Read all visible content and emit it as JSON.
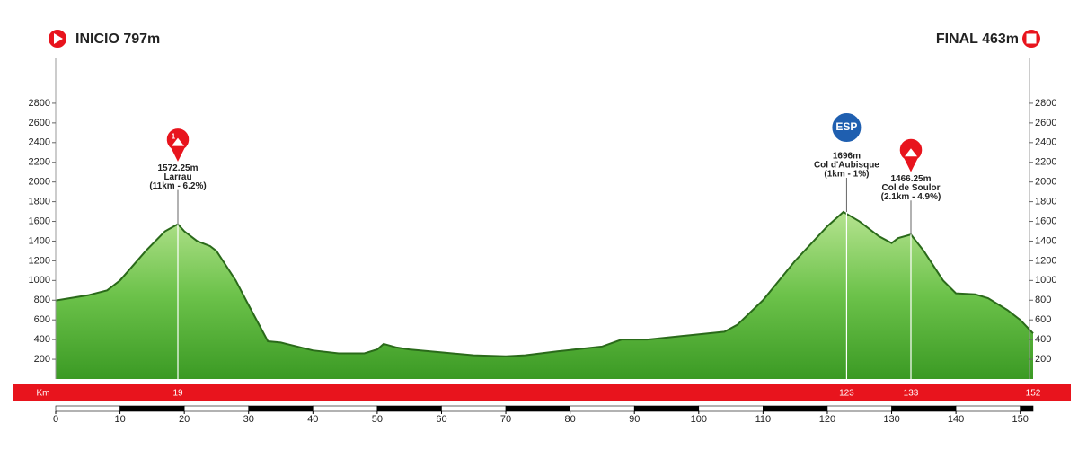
{
  "chart_data": {
    "type": "area",
    "start_label": "INICIO 797m",
    "finish_label": "FINAL 463m",
    "x": [
      0,
      5,
      8,
      10,
      14,
      17,
      19,
      20,
      22,
      24,
      25,
      28,
      30,
      33,
      35,
      40,
      44,
      48,
      50,
      51,
      53,
      55,
      60,
      65,
      70,
      73,
      78,
      85,
      88,
      92,
      98,
      104,
      106,
      110,
      115,
      120,
      122.5,
      125,
      128,
      130,
      131,
      133,
      135,
      138,
      140,
      143,
      145,
      148,
      150,
      152
    ],
    "series": [
      {
        "color": "#3f9f2a",
        "values": [
          797,
          850,
          900,
          1000,
          1300,
          1500,
          1572.25,
          1500,
          1400,
          1350,
          1300,
          1000,
          750,
          383,
          370,
          290,
          260,
          260,
          300,
          356,
          320,
          300,
          270,
          240,
          230,
          240,
          280,
          330,
          400,
          400,
          440,
          480,
          550,
          800,
          1200,
          1550,
          1696,
          1600,
          1450,
          1380,
          1430,
          1466.25,
          1300,
          1000,
          870,
          860,
          820,
          700,
          600,
          463
        ]
      }
    ],
    "xlim": [
      0,
      152
    ],
    "ylim": [
      0,
      3000
    ],
    "xticks": [
      0,
      10,
      20,
      30,
      40,
      50,
      60,
      70,
      80,
      90,
      100,
      110,
      120,
      130,
      140,
      150
    ],
    "yticks": [
      200,
      400,
      600,
      800,
      1000,
      1200,
      1400,
      1600,
      1800,
      2000,
      2200,
      2400,
      2600,
      2800
    ],
    "km_label": "Km",
    "km_markers": [
      19,
      123,
      133,
      152
    ],
    "summits": [
      {
        "km": 19,
        "elevation": 1572.25,
        "elevation_label": "1572.25m",
        "name": "Larrau",
        "detail": "(11km - 6.2%)",
        "badge": "1"
      },
      {
        "km": 123,
        "elevation": 1696,
        "elevation_label": "1696m",
        "name": "Col d'Aubisque",
        "detail": "(1km - 1%)",
        "badge": "ESP"
      },
      {
        "km": 133,
        "elevation": 1466.25,
        "elevation_label": "1466.25m",
        "name": "Col de Soulor",
        "detail": "(2.1km - 4.9%)"
      }
    ]
  }
}
